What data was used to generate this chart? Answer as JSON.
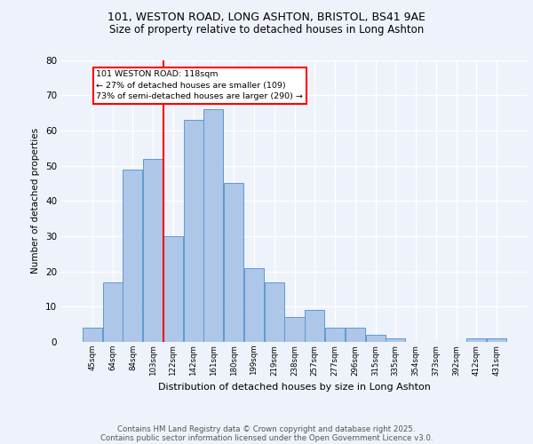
{
  "title_line1": "101, WESTON ROAD, LONG ASHTON, BRISTOL, BS41 9AE",
  "title_line2": "Size of property relative to detached houses in Long Ashton",
  "xlabel": "Distribution of detached houses by size in Long Ashton",
  "ylabel": "Number of detached properties",
  "categories": [
    "45sqm",
    "64sqm",
    "84sqm",
    "103sqm",
    "122sqm",
    "142sqm",
    "161sqm",
    "180sqm",
    "199sqm",
    "219sqm",
    "238sqm",
    "257sqm",
    "277sqm",
    "296sqm",
    "315sqm",
    "335sqm",
    "354sqm",
    "373sqm",
    "392sqm",
    "412sqm",
    "431sqm"
  ],
  "values": [
    4,
    17,
    49,
    52,
    30,
    63,
    66,
    45,
    21,
    17,
    7,
    9,
    4,
    4,
    2,
    1,
    0,
    0,
    0,
    1,
    1
  ],
  "bar_color": "#aec6e8",
  "bar_edge_color": "#5b9bd5",
  "vline_position": 3.5,
  "vline_color": "red",
  "annotation_text": "101 WESTON ROAD: 118sqm\n← 27% of detached houses are smaller (109)\n73% of semi-detached houses are larger (290) →",
  "annotation_box_color": "white",
  "annotation_box_edgecolor": "red",
  "ylim": [
    0,
    80
  ],
  "yticks": [
    0,
    10,
    20,
    30,
    40,
    50,
    60,
    70,
    80
  ],
  "footer_line1": "Contains HM Land Registry data © Crown copyright and database right 2025.",
  "footer_line2": "Contains public sector information licensed under the Open Government Licence v3.0.",
  "bg_color": "#eef2fa",
  "plot_bg_color": "#eef2fa"
}
